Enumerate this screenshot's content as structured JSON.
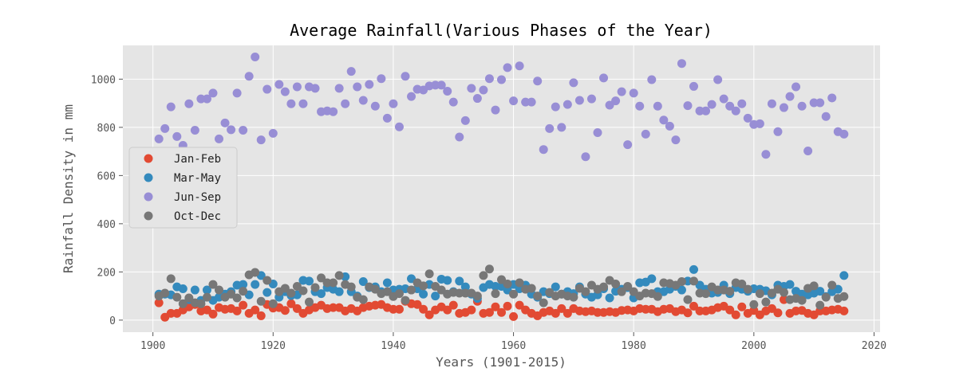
{
  "chart_data": {
    "type": "scatter",
    "title": "Average Rainfall(Various Phases of the Year)",
    "xlabel": "Years (1901-2015)",
    "ylabel": "Rainfall Density in mm",
    "xlim": [
      1895,
      2021
    ],
    "ylim": [
      -50,
      1140
    ],
    "x_ticks": [
      1900,
      1920,
      1940,
      1960,
      1980,
      2000,
      2020
    ],
    "y_ticks": [
      0,
      200,
      400,
      600,
      800,
      1000
    ],
    "grid": true,
    "legend_position": "center-left",
    "colors": {
      "background": "#e5e5e5",
      "grid": "#ffffff"
    },
    "x": [
      1901,
      1902,
      1903,
      1904,
      1905,
      1906,
      1907,
      1908,
      1909,
      1910,
      1911,
      1912,
      1913,
      1914,
      1915,
      1916,
      1917,
      1918,
      1919,
      1920,
      1921,
      1922,
      1923,
      1924,
      1925,
      1926,
      1927,
      1928,
      1929,
      1930,
      1931,
      1932,
      1933,
      1934,
      1935,
      1936,
      1937,
      1938,
      1939,
      1940,
      1941,
      1942,
      1943,
      1944,
      1945,
      1946,
      1947,
      1948,
      1949,
      1950,
      1951,
      1952,
      1953,
      1954,
      1955,
      1956,
      1957,
      1958,
      1959,
      1960,
      1961,
      1962,
      1963,
      1964,
      1965,
      1966,
      1967,
      1968,
      1969,
      1970,
      1971,
      1972,
      1973,
      1974,
      1975,
      1976,
      1977,
      1978,
      1979,
      1980,
      1981,
      1982,
      1983,
      1984,
      1985,
      1986,
      1987,
      1988,
      1989,
      1990,
      1991,
      1992,
      1993,
      1994,
      1995,
      1996,
      1997,
      1998,
      1999,
      2000,
      2001,
      2002,
      2003,
      2004,
      2005,
      2006,
      2007,
      2008,
      2009,
      2010,
      2011,
      2012,
      2013,
      2014,
      2015
    ],
    "series": [
      {
        "name": "Jan-Feb",
        "color": "#e24a33",
        "values": [
          72,
          12,
          28,
          28,
          42,
          55,
          65,
          38,
          42,
          25,
          52,
          45,
          48,
          38,
          62,
          28,
          42,
          18,
          65,
          50,
          52,
          40,
          68,
          48,
          28,
          42,
          52,
          62,
          48,
          52,
          52,
          38,
          48,
          38,
          52,
          58,
          62,
          65,
          52,
          45,
          45,
          78,
          68,
          65,
          45,
          22,
          42,
          55,
          42,
          62,
          28,
          32,
          42,
          78,
          28,
          32,
          55,
          32,
          58,
          15,
          62,
          42,
          28,
          18,
          32,
          38,
          28,
          48,
          28,
          48,
          38,
          35,
          38,
          32,
          32,
          35,
          32,
          40,
          42,
          38,
          48,
          45,
          45,
          35,
          45,
          48,
          35,
          42,
          30,
          58,
          38,
          38,
          42,
          52,
          58,
          42,
          22,
          55,
          28,
          40,
          22,
          38,
          48,
          30,
          85,
          28,
          38,
          40,
          28,
          22,
          38,
          38,
          42,
          45,
          38
        ]
      },
      {
        "name": "Mar-May",
        "color": "#348abd",
        "values": [
          108,
          108,
          105,
          138,
          130,
          85,
          125,
          82,
          125,
          82,
          95,
          108,
          118,
          145,
          148,
          105,
          148,
          185,
          115,
          150,
          95,
          118,
          102,
          105,
          165,
          162,
          118,
          110,
          135,
          128,
          118,
          180,
          118,
          100,
          160,
          135,
          138,
          118,
          155,
          125,
          128,
          130,
          172,
          130,
          108,
          148,
          100,
          170,
          165,
          118,
          162,
          138,
          108,
          90,
          135,
          148,
          140,
          140,
          125,
          148,
          130,
          145,
          108,
          95,
          118,
          110,
          138,
          108,
          118,
          110,
          138,
          108,
          95,
          105,
          130,
          92,
          120,
          128,
          135,
          92,
          155,
          158,
          172,
          118,
          118,
          128,
          140,
          125,
          162,
          210,
          145,
          128,
          112,
          115,
          145,
          110,
          135,
          128,
          120,
          130,
          128,
          122,
          105,
          145,
          140,
          148,
          120,
          108,
          105,
          112,
          120,
          98,
          118,
          128,
          185
        ]
      },
      {
        "name": "Jun-Sep",
        "color": "#988ed5",
        "values": [
          752,
          795,
          885,
          762,
          725,
          898,
          788,
          918,
          918,
          942,
          752,
          818,
          790,
          942,
          788,
          1012,
          1092,
          748,
          958,
          775,
          978,
          948,
          898,
          968,
          898,
          968,
          962,
          865,
          868,
          865,
          962,
          898,
          1032,
          968,
          912,
          978,
          888,
          1002,
          838,
          898,
          802,
          1012,
          928,
          958,
          955,
          972,
          975,
          975,
          950,
          905,
          760,
          828,
          962,
          920,
          955,
          1002,
          872,
          998,
          1048,
          910,
          1055,
          905,
          905,
          992,
          708,
          795,
          885,
          800,
          895,
          985,
          912,
          678,
          918,
          778,
          1005,
          892,
          910,
          948,
          728,
          942,
          888,
          772,
          998,
          888,
          830,
          805,
          748,
          1065,
          890,
          970,
          868,
          868,
          895,
          998,
          918,
          888,
          868,
          898,
          838,
          812,
          815,
          688,
          898,
          782,
          882,
          928,
          968,
          888,
          702,
          902,
          902,
          845,
          922,
          782,
          772
        ]
      },
      {
        "name": "Oct-Dec",
        "color": "#777777",
        "values": [
          100,
          112,
          172,
          95,
          68,
          92,
          72,
          68,
          95,
          148,
          125,
          95,
          108,
          92,
          120,
          188,
          198,
          78,
          165,
          68,
          118,
          132,
          112,
          140,
          122,
          75,
          135,
          175,
          155,
          155,
          185,
          148,
          138,
          95,
          85,
          138,
          128,
          110,
          118,
          98,
          110,
          82,
          125,
          155,
          142,
          192,
          140,
          125,
          108,
          115,
          112,
          112,
          112,
          100,
          185,
          212,
          110,
          168,
          150,
          108,
          155,
          128,
          132,
          100,
          72,
          115,
          100,
          108,
          100,
          95,
          132,
          118,
          145,
          128,
          138,
          165,
          150,
          118,
          140,
          118,
          100,
          112,
          110,
          98,
          155,
          152,
          145,
          160,
          85,
          162,
          112,
          110,
          138,
          125,
          125,
          120,
          155,
          150,
          128,
          65,
          110,
          75,
          112,
          128,
          115,
          85,
          90,
          82,
          132,
          142,
          62,
          95,
          145,
          90,
          98
        ]
      }
    ]
  }
}
